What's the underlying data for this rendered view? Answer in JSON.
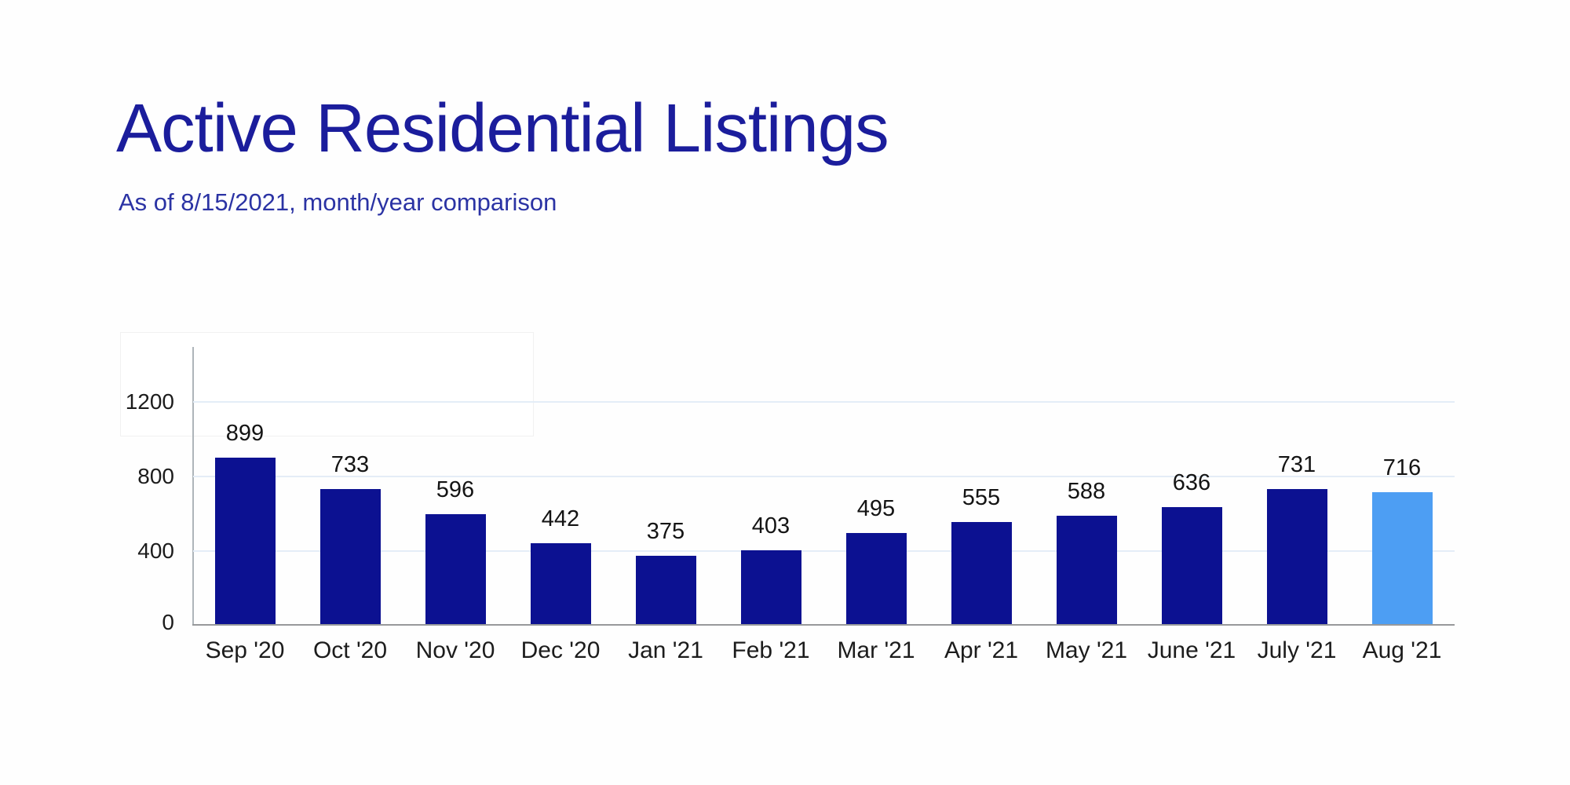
{
  "header": {
    "title": "Active Residential Listings",
    "subtitle": "As of 8/15/2021, month/year comparison"
  },
  "colors": {
    "title_navy": "#1b1d9c",
    "subtitle_blue": "#2b33a4",
    "bar_default": "#0c1191",
    "bar_highlight": "#4d9ef3",
    "gridline": "#e4edf7",
    "axis_gray": "#97999b",
    "label_text": "#1c1c1c"
  },
  "chart_data": {
    "type": "bar",
    "title": "Active Residential Listings",
    "subtitle": "As of 8/15/2021, month/year comparison",
    "categories": [
      "Sep '20",
      "Oct '20",
      "Nov '20",
      "Dec '20",
      "Jan '21",
      "Feb '21",
      "Mar '21",
      "Apr '21",
      "May '21",
      "June '21",
      "July '21",
      "Aug '21"
    ],
    "values": [
      899,
      733,
      596,
      442,
      375,
      403,
      495,
      555,
      588,
      636,
      731,
      716
    ],
    "data_labels_shown": true,
    "highlighted_category": "Aug '21",
    "xlabel": "",
    "ylabel": "",
    "yticks": [
      0,
      400,
      800,
      1200
    ],
    "ylim": [
      0,
      1500
    ],
    "grid": true,
    "legend": "none"
  }
}
